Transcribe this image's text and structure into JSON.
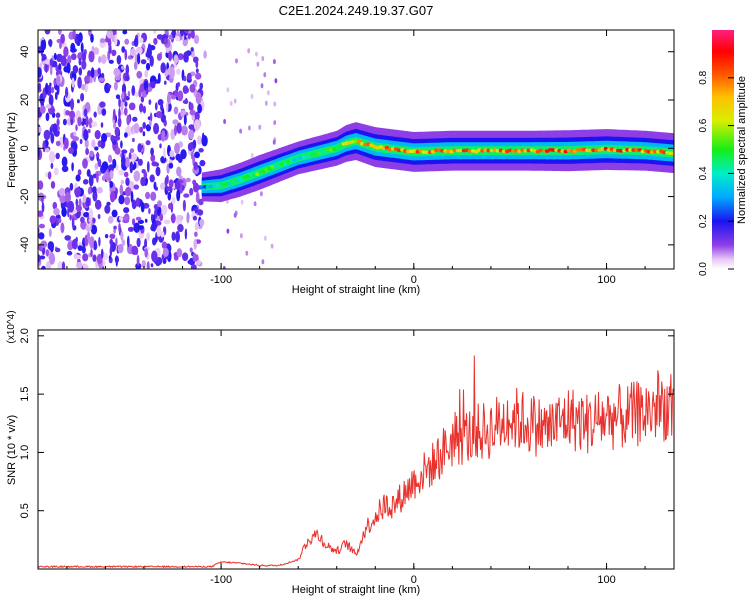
{
  "title": "C2E1.2024.249.19.37.G07",
  "colors": {
    "snr_line": "#e8312c",
    "axis": "#000000",
    "spectro_bg": "#ffffff"
  },
  "chart_data": [
    {
      "type": "heatmap",
      "xlabel": "Height of straight line (km)",
      "ylabel": "Frequency (Hz)",
      "xlim": [
        -195,
        135
      ],
      "ylim": [
        -50,
        49
      ],
      "x_ticks": [
        -100,
        0,
        100
      ],
      "x_tick_labels": [
        "-100",
        "0",
        "100"
      ],
      "y_ticks": [
        -40,
        -20,
        0,
        20,
        40
      ],
      "y_tick_labels": [
        "-40",
        "-20",
        "0",
        "20",
        "40"
      ],
      "colormap": "rainbow",
      "colorbar": {
        "label": "Normalized spectral amplitude",
        "range": [
          0.0,
          1.0
        ],
        "ticks": [
          0.0,
          0.2,
          0.4,
          0.6,
          0.8
        ],
        "tick_labels": [
          "0.0",
          "0.2",
          "0.4",
          "0.6",
          "0.8"
        ]
      },
      "noise_region_x": [
        -195,
        -110
      ],
      "signal_trace": {
        "x": [
          -110,
          -100,
          -90,
          -80,
          -70,
          -60,
          -50,
          -40,
          -35,
          -30,
          -20,
          0,
          20,
          40,
          60,
          80,
          100,
          120,
          135
        ],
        "frequency_hz": [
          -16,
          -15.5,
          -13,
          -10,
          -7,
          -4,
          -2,
          0,
          2,
          3,
          0.5,
          -1.5,
          -1,
          -1,
          -1,
          -1,
          -0.5,
          -1,
          -2
        ],
        "amplitude": [
          0.25,
          0.45,
          0.5,
          0.55,
          0.5,
          0.45,
          0.5,
          0.55,
          0.65,
          0.7,
          0.8,
          0.8,
          0.8,
          0.8,
          0.8,
          0.85,
          0.85,
          0.8,
          0.8
        ]
      }
    },
    {
      "type": "line",
      "xlabel": "Height of straight line (km)",
      "ylabel": "SNR (10 * v/v)",
      "y_multiplier": "(x10^4)",
      "xlim": [
        -195,
        135
      ],
      "ylim": [
        0,
        2.05
      ],
      "x_ticks": [
        -100,
        0,
        100
      ],
      "x_tick_labels": [
        "-100",
        "0",
        "100"
      ],
      "y_ticks": [
        0.5,
        1.0,
        1.5,
        2.0
      ],
      "y_tick_labels": [
        "0.5",
        "1.0",
        "1.5",
        "2.0"
      ],
      "series": [
        {
          "x": [
            -195,
            -150,
            -105,
            -100,
            -90,
            -80,
            -70,
            -60,
            -55,
            -50,
            -45,
            -40,
            -35,
            -30,
            -25,
            -20,
            -15,
            -10,
            -5,
            0,
            10,
            20,
            30,
            40,
            50,
            60,
            70,
            80,
            90,
            100,
            110,
            120,
            130,
            135
          ],
          "values": [
            0.02,
            0.02,
            0.02,
            0.06,
            0.05,
            0.03,
            0.03,
            0.08,
            0.25,
            0.3,
            0.2,
            0.15,
            0.22,
            0.12,
            0.35,
            0.45,
            0.55,
            0.55,
            0.65,
            0.75,
            0.9,
            1.1,
            1.15,
            1.2,
            1.3,
            1.25,
            1.2,
            1.3,
            1.25,
            1.3,
            1.3,
            1.35,
            1.4,
            1.38
          ]
        }
      ]
    }
  ]
}
